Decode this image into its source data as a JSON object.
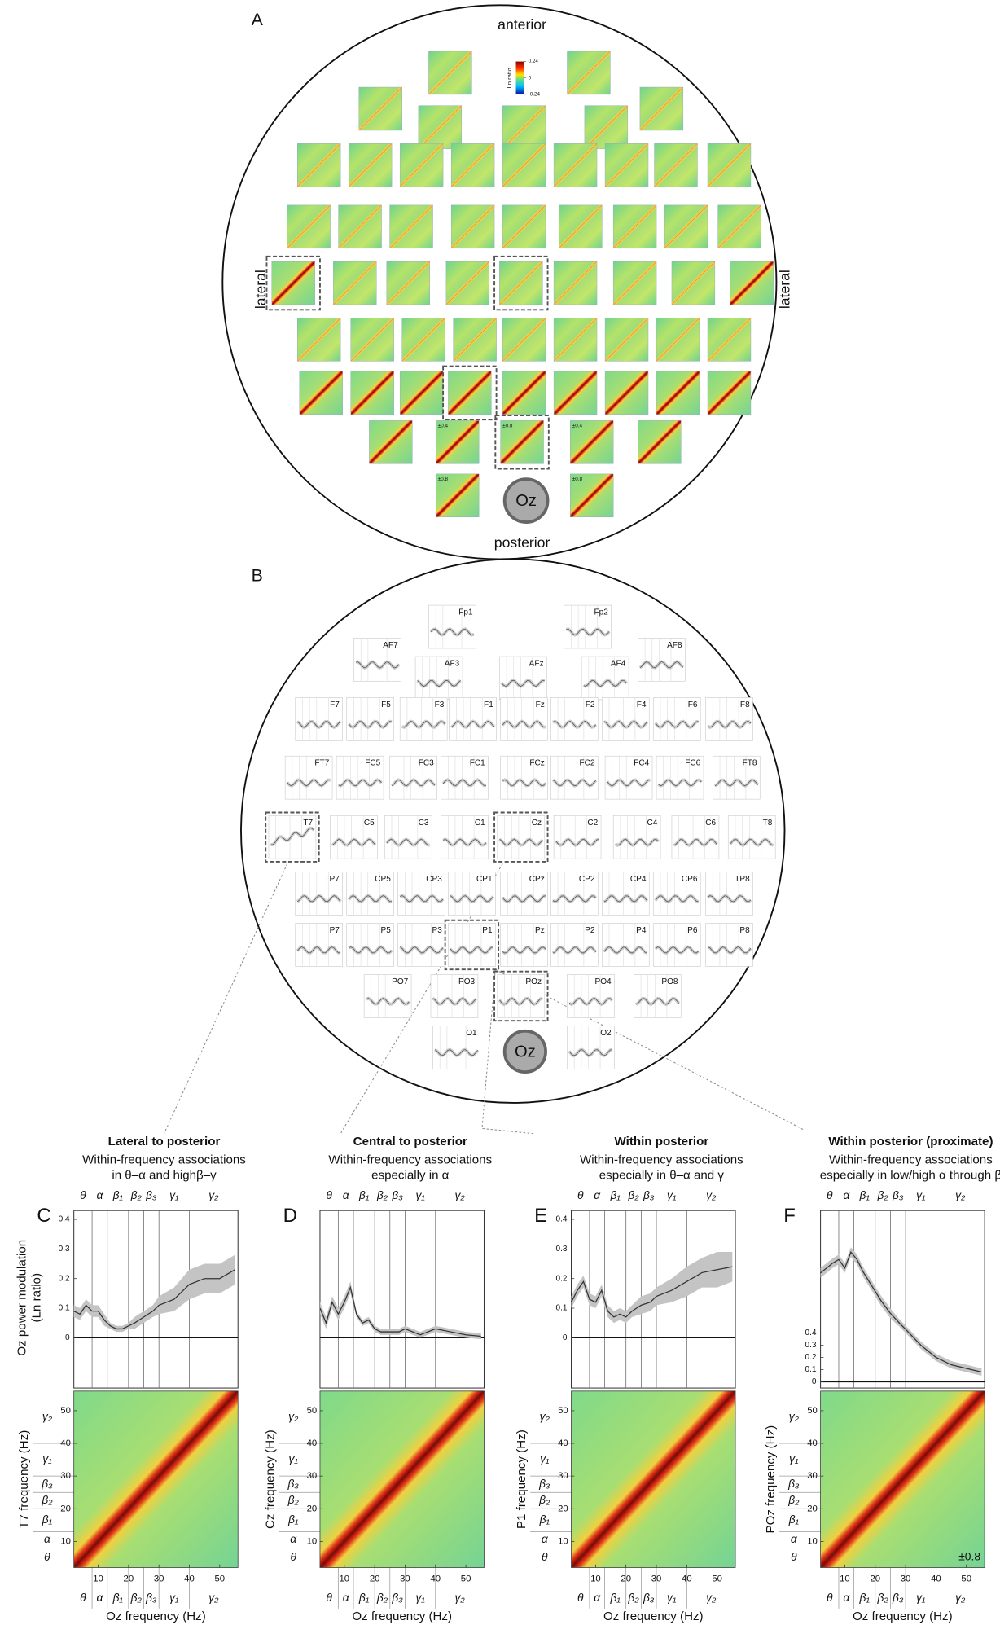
{
  "panel_a": {
    "label": "A",
    "top": "anterior",
    "bottom": "posterior",
    "left": "lateral",
    "right": "lateral",
    "reference": "Oz",
    "colorbar": {
      "title": "Ln ratio",
      "clim": [
        -0.24,
        0.24
      ],
      "ticks": [
        0.24,
        0,
        -0.24
      ]
    },
    "rows": [
      [
        null,
        null
      ],
      [
        null,
        null,
        null,
        null,
        null
      ],
      [
        null,
        null,
        null,
        null,
        null,
        null,
        null,
        null,
        null
      ],
      [
        null,
        null,
        null,
        null,
        null,
        null,
        null,
        null,
        null
      ],
      [
        null,
        null,
        null,
        null,
        null,
        null,
        null,
        null,
        null
      ],
      [
        null,
        null,
        null,
        null,
        null,
        null,
        null,
        null,
        null
      ],
      [
        null,
        null,
        null,
        null,
        null,
        null,
        null,
        null,
        null
      ],
      [
        null,
        "±0.4",
        "±0.8",
        "±0.4",
        null
      ],
      [
        "±0.8",
        "±0.8"
      ]
    ]
  },
  "panel_b": {
    "label": "B",
    "reference": "Oz",
    "rows": [
      [
        "Fp1",
        "Fp2"
      ],
      [
        "AF7",
        "AF3",
        "AFz",
        "AF4",
        "AF8"
      ],
      [
        "F7",
        "F5",
        "F3",
        "F1",
        "Fz",
        "F2",
        "F4",
        "F6",
        "F8"
      ],
      [
        "FT7",
        "FC5",
        "FC3",
        "FC1",
        "FCz",
        "FC2",
        "FC4",
        "FC6",
        "FT8"
      ],
      [
        "T7",
        "C5",
        "C3",
        "C1",
        "Cz",
        "C2",
        "C4",
        "C6",
        "T8"
      ],
      [
        "TP7",
        "CP5",
        "CP3",
        "CP1",
        "CPz",
        "CP2",
        "CP4",
        "CP6",
        "TP8"
      ],
      [
        "P7",
        "P5",
        "P3",
        "P1",
        "Pz",
        "P2",
        "P4",
        "P6",
        "P8"
      ],
      [
        "PO7",
        "PO3",
        "POz",
        "PO4",
        "PO8"
      ],
      [
        "O1",
        "O2"
      ]
    ]
  },
  "chart_data": [
    {
      "type": "line",
      "label": "C",
      "title": "Lateral to posterior",
      "subtitle": [
        "Within-frequency associations",
        "in θ–α and highβ–γ"
      ],
      "bands": [
        "θ",
        "α",
        "β₁",
        "β₂",
        "β₃",
        "γ₁",
        "γ₂"
      ],
      "band_colors": [
        "#3b4fc4",
        "#3b4fc4",
        "#5f8a2a",
        "#5f8a2a",
        "#5f8a2a",
        "#c9a227",
        "#c9a227"
      ],
      "band_edges": [
        8,
        13,
        20,
        25,
        30,
        40
      ],
      "ylabel": [
        "Oz power modulation",
        "(Ln ratio)"
      ],
      "x": [
        2,
        4,
        6,
        8,
        10,
        12,
        14,
        16,
        18,
        20,
        22,
        25,
        28,
        30,
        35,
        40,
        45,
        50,
        55
      ],
      "xlim": [
        2,
        56
      ],
      "ylim": [
        -0.17,
        0.43
      ],
      "yticks": [
        0,
        0.1,
        0.2,
        0.3,
        0.4
      ],
      "series": [
        {
          "color": "#333333",
          "values": [
            0.09,
            0.08,
            0.11,
            0.09,
            0.09,
            0.06,
            0.04,
            0.03,
            0.03,
            0.04,
            0.05,
            0.07,
            0.09,
            0.11,
            0.13,
            0.18,
            0.2,
            0.2,
            0.23
          ],
          "errors": [
            0.02,
            0.02,
            0.02,
            0.02,
            0.02,
            0.02,
            0.01,
            0.01,
            0.01,
            0.01,
            0.02,
            0.02,
            0.02,
            0.03,
            0.04,
            0.05,
            0.05,
            0.05,
            0.05
          ]
        }
      ],
      "heatmap": {
        "ylabel": "T7 frequency (Hz)",
        "xlabel": "Oz frequency (Hz)",
        "ticks": [
          10,
          20,
          30,
          40,
          50
        ]
      }
    },
    {
      "type": "line",
      "label": "D",
      "title": "Central to posterior",
      "subtitle": [
        "Within-frequency associations",
        "especially in α"
      ],
      "bands": [
        "θ",
        "α",
        "β₁",
        "β₂",
        "β₃",
        "γ₁",
        "γ₂"
      ],
      "band_colors": [
        "#3b4fc4",
        "#3b4fc4",
        "#5f8a2a",
        "#5f8a2a",
        "#5f8a2a",
        "#c9a227",
        "#c9a227"
      ],
      "band_edges": [
        8,
        13,
        20,
        25,
        30,
        40
      ],
      "x": [
        2,
        4,
        6,
        8,
        10,
        12,
        14,
        16,
        18,
        20,
        22,
        25,
        28,
        30,
        35,
        40,
        45,
        50,
        55
      ],
      "xlim": [
        2,
        56
      ],
      "ylim": [
        -0.17,
        0.43
      ],
      "series": [
        {
          "color": "#333333",
          "values": [
            0.1,
            0.05,
            0.12,
            0.08,
            0.12,
            0.17,
            0.08,
            0.05,
            0.06,
            0.03,
            0.02,
            0.02,
            0.02,
            0.03,
            0.01,
            0.03,
            0.02,
            0.01,
            0.005
          ],
          "errors": [
            0.02,
            0.02,
            0.02,
            0.02,
            0.02,
            0.02,
            0.01,
            0.01,
            0.01,
            0.01,
            0.01,
            0.01,
            0.01,
            0.01,
            0.01,
            0.01,
            0.01,
            0.01,
            0.01
          ]
        }
      ],
      "heatmap": {
        "ylabel": "Cz frequency (Hz)",
        "xlabel": "Oz frequency (Hz)",
        "ticks": [
          10,
          20,
          30,
          40,
          50
        ]
      }
    },
    {
      "type": "line",
      "label": "E",
      "title": "Within posterior",
      "subtitle": [
        "Within-frequency associations",
        "especially in θ–α and γ"
      ],
      "bands": [
        "θ",
        "α",
        "β₁",
        "β₂",
        "β₃",
        "γ₁",
        "γ₂"
      ],
      "band_colors": [
        "#3b4fc4",
        "#3b4fc4",
        "#5f8a2a",
        "#5f8a2a",
        "#5f8a2a",
        "#c9a227",
        "#c9a227"
      ],
      "band_edges": [
        8,
        13,
        20,
        25,
        30,
        40
      ],
      "x": [
        2,
        4,
        6,
        8,
        10,
        12,
        14,
        16,
        18,
        20,
        22,
        25,
        28,
        30,
        35,
        40,
        45,
        50,
        55
      ],
      "xlim": [
        2,
        56
      ],
      "ylim": [
        -0.17,
        0.43
      ],
      "yticks": [
        0,
        0.1,
        0.2,
        0.3,
        0.4
      ],
      "series": [
        {
          "color": "#333333",
          "values": [
            0.12,
            0.16,
            0.19,
            0.13,
            0.12,
            0.16,
            0.09,
            0.07,
            0.08,
            0.07,
            0.09,
            0.11,
            0.12,
            0.14,
            0.16,
            0.19,
            0.22,
            0.23,
            0.24
          ],
          "errors": [
            0.02,
            0.02,
            0.02,
            0.02,
            0.02,
            0.02,
            0.02,
            0.02,
            0.02,
            0.02,
            0.02,
            0.03,
            0.03,
            0.03,
            0.04,
            0.05,
            0.05,
            0.06,
            0.05
          ]
        }
      ],
      "heatmap": {
        "ylabel": "P1 frequency (Hz)",
        "xlabel": "Oz frequency (Hz)",
        "ticks": [
          10,
          20,
          30,
          40,
          50
        ]
      }
    },
    {
      "type": "line",
      "label": "F",
      "title": "Within posterior (proximate)",
      "subtitle": [
        "Within-frequency associations",
        "especially in low/high α through β"
      ],
      "bands": [
        "θ",
        "α",
        "β₁",
        "β₂",
        "β₃",
        "γ₁",
        "γ₂"
      ],
      "band_colors": [
        "#3b4fc4",
        "#3b4fc4",
        "#5f8a2a",
        "#5f8a2a",
        "#5f8a2a",
        "#c9a227",
        "#c9a227"
      ],
      "band_edges": [
        8,
        13,
        20,
        25,
        30,
        40
      ],
      "x": [
        2,
        4,
        6,
        8,
        10,
        12,
        14,
        16,
        18,
        20,
        22,
        25,
        28,
        30,
        35,
        40,
        45,
        50,
        55
      ],
      "xlim": [
        2,
        56
      ],
      "ylim": [
        -0.05,
        1.4
      ],
      "yticks": [
        0,
        0.1,
        0.2,
        0.3,
        0.4
      ],
      "series": [
        {
          "color": "#333333",
          "values": [
            0.89,
            0.93,
            0.97,
            1.0,
            0.93,
            1.06,
            1.0,
            0.9,
            0.82,
            0.74,
            0.66,
            0.56,
            0.48,
            0.43,
            0.3,
            0.2,
            0.14,
            0.11,
            0.08
          ],
          "errors": [
            0.04,
            0.04,
            0.04,
            0.04,
            0.04,
            0.04,
            0.04,
            0.04,
            0.04,
            0.04,
            0.04,
            0.04,
            0.03,
            0.03,
            0.03,
            0.03,
            0.03,
            0.03,
            0.03
          ]
        }
      ],
      "heatmap": {
        "ylabel": "POz frequency (Hz)",
        "xlabel": "Oz frequency (Hz)",
        "ticks": [
          10,
          20,
          30,
          40,
          50
        ],
        "scale_label": "±0.8"
      }
    }
  ]
}
